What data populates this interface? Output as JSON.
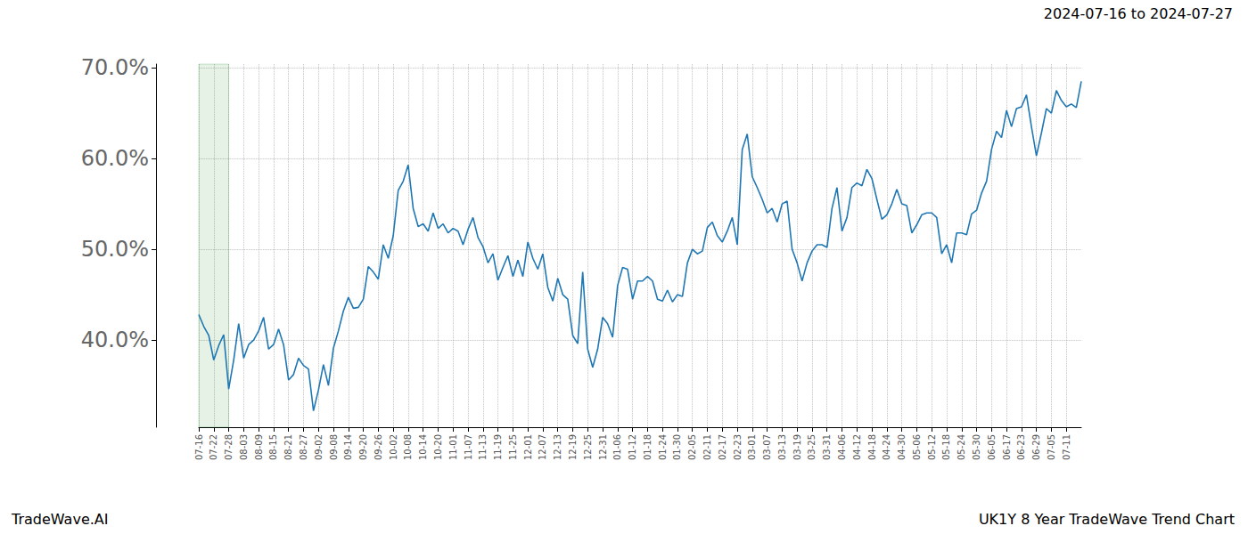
{
  "chart_data": {
    "type": "line",
    "title": "2024-07-16 to 2024-07-27",
    "annotations": [
      "TradeWave.AI",
      "UK1Y 8 Year TradeWave Trend Chart"
    ],
    "categories": [
      "07-16",
      null,
      null,
      "07-22",
      null,
      null,
      "07-28",
      null,
      null,
      "08-03",
      null,
      null,
      "08-09",
      null,
      null,
      "08-15",
      null,
      null,
      "08-21",
      null,
      null,
      "08-27",
      null,
      null,
      "09-02",
      null,
      null,
      "09-08",
      null,
      null,
      "09-14",
      null,
      null,
      "09-20",
      null,
      null,
      "09-26",
      null,
      null,
      "10-02",
      null,
      null,
      "10-08",
      null,
      null,
      "10-14",
      null,
      null,
      "10-20",
      null,
      null,
      "11-01",
      null,
      null,
      "11-07",
      null,
      null,
      "11-13",
      null,
      null,
      "11-19",
      null,
      null,
      "11-25",
      null,
      null,
      "12-01",
      null,
      null,
      "12-07",
      null,
      null,
      "12-13",
      null,
      null,
      "12-19",
      null,
      null,
      "12-25",
      null,
      null,
      "12-31",
      null,
      null,
      "01-06",
      null,
      null,
      "01-12",
      null,
      null,
      "01-18",
      null,
      null,
      "01-24",
      null,
      null,
      "01-30",
      null,
      null,
      "02-05",
      null,
      null,
      "02-11",
      null,
      null,
      "02-17",
      null,
      null,
      "02-23",
      null,
      null,
      "03-01",
      null,
      null,
      "03-07",
      null,
      null,
      "03-13",
      null,
      null,
      "03-19",
      null,
      null,
      "03-25",
      null,
      null,
      "03-31",
      null,
      null,
      "04-06",
      null,
      null,
      "04-12",
      null,
      null,
      "04-18",
      null,
      null,
      "04-24",
      null,
      null,
      "04-30",
      null,
      null,
      "05-06",
      null,
      null,
      "05-12",
      null,
      null,
      "05-18",
      null,
      null,
      "05-24",
      null,
      null,
      "05-30",
      null,
      null,
      "06-05",
      null,
      null,
      "06-17",
      null,
      null,
      "06-23",
      null,
      null,
      "06-29",
      null,
      null,
      "07-05",
      null,
      null,
      "07-11",
      null,
      null,
      null
    ],
    "values": [
      42.8,
      41.5,
      40.5,
      37.8,
      39.4,
      40.6,
      34.6,
      37.8,
      41.8,
      38.0,
      39.5,
      40.0,
      41.0,
      42.5,
      39.0,
      39.5,
      41.2,
      39.5,
      35.6,
      36.2,
      38.0,
      37.2,
      36.8,
      32.2,
      34.5,
      37.3,
      35.0,
      39.1,
      41.0,
      43.2,
      44.7,
      43.5,
      43.6,
      44.5,
      48.1,
      47.5,
      46.7,
      50.5,
      49.0,
      51.5,
      56.5,
      57.5,
      59.3,
      54.5,
      52.5,
      52.8,
      52.0,
      54.0,
      52.3,
      52.8,
      51.8,
      52.3,
      52.0,
      50.5,
      52.2,
      53.5,
      51.3,
      50.3,
      48.5,
      49.5,
      46.6,
      48.0,
      49.3,
      47.0,
      48.8,
      47.0,
      50.8,
      49.0,
      47.8,
      49.5,
      45.8,
      44.3,
      46.8,
      45.0,
      44.5,
      40.5,
      39.6,
      47.5,
      39.0,
      37.0,
      39.0,
      42.5,
      41.8,
      40.3,
      46.0,
      48.0,
      47.8,
      44.5,
      46.5,
      46.5,
      47.0,
      46.5,
      44.5,
      44.3,
      45.5,
      44.2,
      45.0,
      44.8,
      48.5,
      50.0,
      49.5,
      49.8,
      52.4,
      53.0,
      51.5,
      50.8,
      52.0,
      53.5,
      50.5,
      61.0,
      62.7,
      58.0,
      56.8,
      55.5,
      54.0,
      54.5,
      53.0,
      55.0,
      55.3,
      50.0,
      48.5,
      46.5,
      48.5,
      49.8,
      50.5,
      50.5,
      50.2,
      54.5,
      56.8,
      52.0,
      53.5,
      56.8,
      57.3,
      57.0,
      58.8,
      57.8,
      55.5,
      53.3,
      53.8,
      55.0,
      56.6,
      55.0,
      54.8,
      51.8,
      52.7,
      53.8,
      54.0,
      54.0,
      53.5,
      49.5,
      50.5,
      48.5,
      51.8,
      51.8,
      51.6,
      53.9,
      54.3,
      56.2,
      57.5,
      61.0,
      63.0,
      62.3,
      65.3,
      63.5,
      65.5,
      65.7,
      67.0,
      63.5,
      60.3,
      62.8,
      65.5,
      65.0,
      67.5,
      66.4,
      65.7,
      66.0,
      65.6,
      68.5
    ],
    "color": "#1f77b4",
    "marker": "none",
    "highlight": {
      "from": "07-16",
      "to": "07-28"
    },
    "ylim": [
      30.4,
      70.4
    ],
    "yticks": [
      {
        "value": 40,
        "label": "40.0%"
      },
      {
        "value": 50,
        "label": "50.0%"
      },
      {
        "value": 60,
        "label": "60.0%"
      },
      {
        "value": 70,
        "label": "70.0%"
      }
    ],
    "grid": true
  }
}
